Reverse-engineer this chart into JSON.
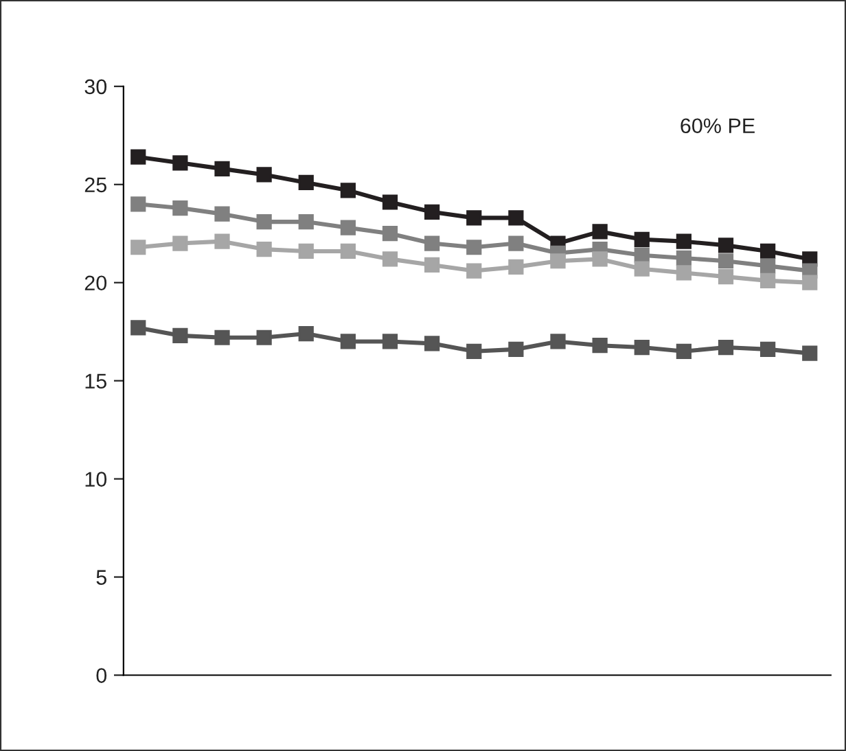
{
  "chart_data": {
    "type": "line",
    "categories": [
      null,
      null,
      null,
      null,
      null,
      null,
      null,
      null,
      null,
      null,
      null,
      null,
      null,
      null,
      null,
      null,
      null
    ],
    "series": [
      {
        "color": "#231f20",
        "values": [
          26.4,
          26.1,
          25.8,
          25.5,
          25.1,
          24.7,
          24.1,
          23.6,
          23.3,
          23.3,
          22.0,
          22.6,
          22.2,
          22.1,
          21.9,
          21.6,
          21.2
        ]
      },
      {
        "color": "#808080",
        "values": [
          24.0,
          23.8,
          23.5,
          23.1,
          23.1,
          22.8,
          22.5,
          22.0,
          21.8,
          22.0,
          21.5,
          21.7,
          21.4,
          21.25,
          21.1,
          20.85,
          20.6
        ]
      },
      {
        "color": "#a6a6a6",
        "values": [
          21.8,
          22.0,
          22.1,
          21.7,
          21.6,
          21.6,
          21.2,
          20.9,
          20.6,
          20.8,
          21.1,
          21.2,
          20.7,
          20.5,
          20.3,
          20.1,
          20.0
        ]
      },
      {
        "color": "#555555",
        "values": [
          17.7,
          17.3,
          17.2,
          17.2,
          17.4,
          17.0,
          17.0,
          16.9,
          16.5,
          16.6,
          17.0,
          16.8,
          16.7,
          16.5,
          16.7,
          16.6,
          16.4
        ]
      }
    ],
    "annotations": [
      "60% PE"
    ],
    "ylim": [
      0,
      30
    ],
    "yticks": [
      0,
      5,
      10,
      15,
      20,
      25,
      30
    ],
    "marker": "square",
    "line_style": "solid",
    "grid": false,
    "legend": false
  }
}
